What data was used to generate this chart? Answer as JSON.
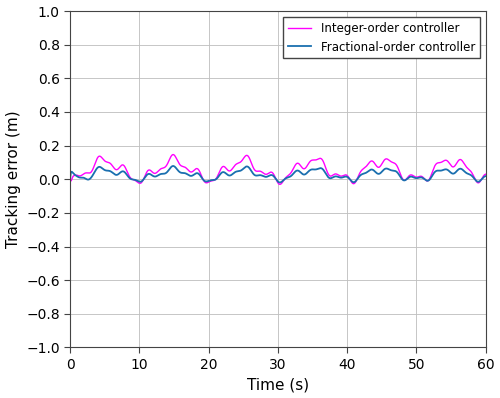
{
  "title": "",
  "xlabel": "Time (s)",
  "ylabel": "Tracking error (m)",
  "xlim": [
    0,
    60
  ],
  "ylim": [
    -1,
    1
  ],
  "xticks": [
    0,
    10,
    20,
    30,
    40,
    50,
    60
  ],
  "yticks": [
    -1,
    -0.8,
    -0.6,
    -0.4,
    -0.2,
    0,
    0.2,
    0.4,
    0.6,
    0.8,
    1
  ],
  "integer_color": "#FF00FF",
  "fractional_color": "#1A6FAF",
  "legend_labels": [
    "Integer-order controller",
    "Fractional-order controller"
  ],
  "background_color": "#FFFFFF",
  "grid_color": "#C0C0C0"
}
